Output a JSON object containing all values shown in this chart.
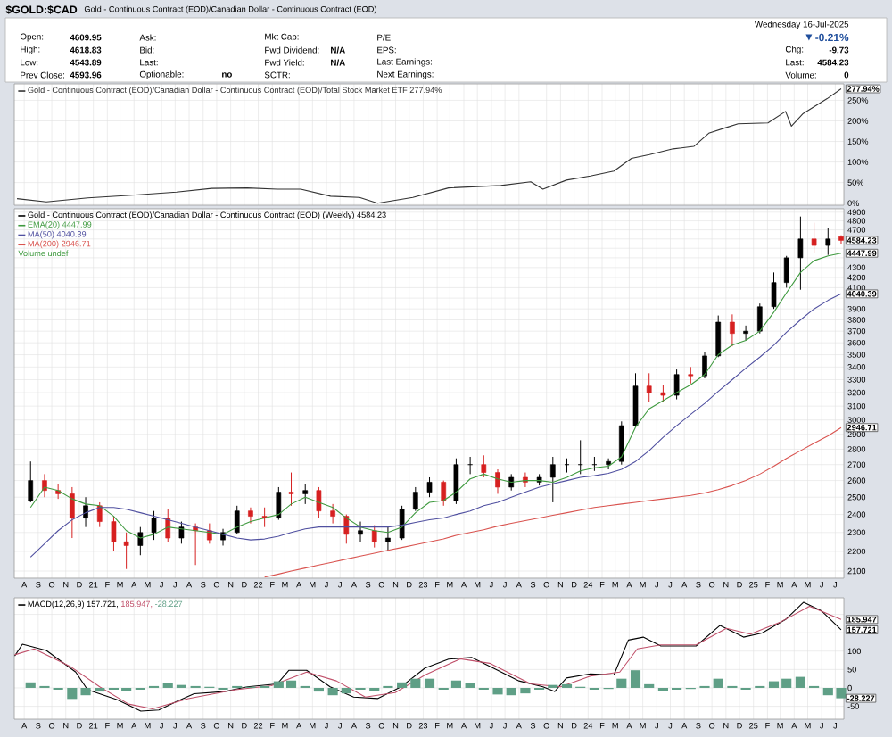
{
  "chart_data": [
    {
      "type": "line",
      "title": "$GOLD:$CAD",
      "subtitle": "Gold - Continuous Contract (EOD)/Canadian Dollar - Continuous Contract (EOD)",
      "annotations": [
        "Open:",
        "4609.95",
        "High:",
        "4618.83",
        "Low:",
        "4543.89",
        "Prev Close:",
        "4593.96",
        "Ask:",
        "Bid:",
        "Last:",
        "Optionable:",
        "no",
        "Mkt Cap:",
        "Fwd Dividend:",
        "N/A",
        "Fwd Yield:",
        "N/A",
        "SCTR:",
        "P/E:",
        "EPS:",
        "Last Earnings:",
        "Next Earnings:",
        "Wednesday 16-Jul-2025",
        "-0.21%",
        "Chg:",
        "-9.73",
        "Last:",
        "4584.23",
        "Volume:",
        "0",
        {
          "text": "277.94%",
          "x": "2025-07-14",
          "y": 277.94
        }
      ],
      "series": [
        {
          "name": "Gold - Continuous Contract (EOD)/Canadian Dollar - Continuous Contract (EOD)/Total Stock Market ETF 277.94%",
          "color": "#333333",
          "x": [
            "2020-07-16",
            "2020-09-19",
            "2020-12-20",
            "2021-04-04",
            "2021-07-04",
            "2021-09-20",
            "2021-12-08",
            "2022-02-12",
            "2022-04-05",
            "2022-06-10",
            "2022-08-13",
            "2022-09-22",
            "2022-12-09",
            "2023-02-26",
            "2023-06-22",
            "2023-08-27",
            "2023-09-23",
            "2023-11-14",
            "2024-01-06",
            "2024-02-27",
            "2024-04-06",
            "2024-05-16",
            "2024-07-07",
            "2024-08-22",
            "2024-09-24",
            "2024-11-02",
            "2024-11-28",
            "2025-02-02",
            "2025-03-13",
            "2025-03-26",
            "2025-04-21",
            "2025-06-13",
            "2025-07-14"
          ],
          "values": [
            11,
            3,
            13,
            20,
            27,
            36,
            37,
            34,
            34,
            17,
            14,
            0,
            14,
            37,
            43,
            52,
            34,
            56,
            66,
            78,
            109,
            118,
            132,
            138,
            170,
            184,
            193,
            195,
            223,
            187,
            218,
            254,
            277.94
          ]
        }
      ],
      "xlim": [
        "2020-07-10",
        "2025-07-20"
      ],
      "xticks": [
        {
          "value": "2020-08",
          "label": null
        },
        {
          "value": "2020-09",
          "label": null
        },
        {
          "value": "2020-10",
          "label": null
        },
        {
          "value": "2020-11",
          "label": null
        },
        {
          "value": "2020-12",
          "label": null
        },
        {
          "value": "2021-01",
          "label": null
        },
        {
          "value": "2021-02",
          "label": null
        },
        {
          "value": "2021-03",
          "label": null
        },
        {
          "value": "2021-04",
          "label": null
        },
        {
          "value": "2021-05",
          "label": null
        },
        {
          "value": "2021-06",
          "label": null
        },
        {
          "value": "2021-07",
          "label": null
        },
        {
          "value": "2021-08",
          "label": null
        },
        {
          "value": "2021-09",
          "label": null
        },
        {
          "value": "2021-10",
          "label": null
        },
        {
          "value": "2021-11",
          "label": null
        },
        {
          "value": "2021-12",
          "label": null
        },
        {
          "value": "2022-01",
          "label": null
        },
        {
          "value": "2022-02",
          "label": null
        },
        {
          "value": "2022-03",
          "label": null
        },
        {
          "value": "2022-04",
          "label": null
        },
        {
          "value": "2022-05",
          "label": null
        },
        {
          "value": "2022-06",
          "label": null
        },
        {
          "value": "2022-07",
          "label": null
        },
        {
          "value": "2022-08",
          "label": null
        },
        {
          "value": "2022-09",
          "label": null
        },
        {
          "value": "2022-10",
          "label": null
        },
        {
          "value": "2022-11",
          "label": null
        },
        {
          "value": "2022-12",
          "label": null
        },
        {
          "value": "2023-01",
          "label": null
        },
        {
          "value": "2023-02",
          "label": null
        },
        {
          "value": "2023-03",
          "label": null
        },
        {
          "value": "2023-04",
          "label": null
        },
        {
          "value": "2023-05",
          "label": null
        },
        {
          "value": "2023-06",
          "label": null
        },
        {
          "value": "2023-07",
          "label": null
        },
        {
          "value": "2023-08",
          "label": null
        },
        {
          "value": "2023-09",
          "label": null
        },
        {
          "value": "2023-10",
          "label": null
        },
        {
          "value": "2023-11",
          "label": null
        },
        {
          "value": "2023-12",
          "label": null
        },
        {
          "value": "2024-01",
          "label": null
        },
        {
          "value": "2024-02",
          "label": null
        },
        {
          "value": "2024-03",
          "label": null
        },
        {
          "value": "2024-04",
          "label": null
        },
        {
          "value": "2024-05",
          "label": null
        },
        {
          "value": "2024-06",
          "label": null
        },
        {
          "value": "2024-07",
          "label": null
        },
        {
          "value": "2024-08",
          "label": null
        },
        {
          "value": "2024-09",
          "label": null
        },
        {
          "value": "2024-10",
          "label": null
        },
        {
          "value": "2024-11",
          "label": null
        },
        {
          "value": "2024-12",
          "label": null
        },
        {
          "value": "2025-01",
          "label": null
        },
        {
          "value": "2025-02",
          "label": null
        },
        {
          "value": "2025-03",
          "label": null
        },
        {
          "value": "2025-04",
          "label": null
        },
        {
          "value": "2025-05",
          "label": null
        },
        {
          "value": "2025-06",
          "label": null
        },
        {
          "value": "2025-07",
          "label": null
        }
      ],
      "ylim": [
        -5,
        290
      ],
      "yticks": [
        {
          "value": 0,
          "label": "0%"
        },
        {
          "value": 50,
          "label": "50%"
        },
        {
          "value": 100,
          "label": "100%"
        },
        {
          "value": 150,
          "label": "150%"
        },
        {
          "value": 200,
          "label": "200%"
        },
        {
          "value": 250,
          "label": "250%"
        }
      ],
      "grid": true,
      "tick_labels": "y",
      "legend": "top left"
    },
    {
      "type": "candlestick",
      "legend_title": "Gold - Continuous Contract (EOD)/Canadian Dollar - Continuous Contract (EOD) (Weekly) 4584.23",
      "x": [
        "2020-08-15",
        "2020-09-15",
        "2020-10-15",
        "2020-11-15",
        "2020-12-15",
        "2021-01-15",
        "2021-02-15",
        "2021-03-15",
        "2021-04-15",
        "2021-05-15",
        "2021-06-15",
        "2021-07-15",
        "2021-08-15",
        "2021-09-15",
        "2021-10-15",
        "2021-11-15",
        "2021-12-15",
        "2022-01-15",
        "2022-02-15",
        "2022-03-15",
        "2022-04-15",
        "2022-05-15",
        "2022-06-15",
        "2022-07-15",
        "2022-08-15",
        "2022-09-15",
        "2022-10-15",
        "2022-11-15",
        "2022-12-15",
        "2023-01-15",
        "2023-02-15",
        "2023-03-15",
        "2023-04-15",
        "2023-05-15",
        "2023-06-15",
        "2023-07-15",
        "2023-08-15",
        "2023-09-15",
        "2023-10-15",
        "2023-11-15",
        "2023-12-15",
        "2024-01-15",
        "2024-02-15",
        "2024-03-15",
        "2024-04-15",
        "2024-05-15",
        "2024-06-15",
        "2024-07-15",
        "2024-08-15",
        "2024-09-15",
        "2024-10-15",
        "2024-11-15",
        "2024-12-15",
        "2025-01-15",
        "2025-02-15",
        "2025-03-15",
        "2025-04-15",
        "2025-05-15",
        "2025-06-15",
        "2025-07-14"
      ],
      "ohlc": [
        [
          2480,
          2720,
          2470,
          2600
        ],
        [
          2600,
          2640,
          2500,
          2540
        ],
        [
          2540,
          2580,
          2490,
          2520
        ],
        [
          2520,
          2560,
          2270,
          2380
        ],
        [
          2380,
          2500,
          2330,
          2450
        ],
        [
          2450,
          2470,
          2330,
          2360
        ],
        [
          2360,
          2390,
          2200,
          2250
        ],
        [
          2250,
          2300,
          2110,
          2230
        ],
        [
          2230,
          2330,
          2180,
          2300
        ],
        [
          2300,
          2420,
          2260,
          2380
        ],
        [
          2380,
          2430,
          2250,
          2270
        ],
        [
          2270,
          2360,
          2240,
          2330
        ],
        [
          2330,
          2350,
          2130,
          2310
        ],
        [
          2310,
          2350,
          2240,
          2260
        ],
        [
          2260,
          2320,
          2230,
          2300
        ],
        [
          2300,
          2450,
          2290,
          2420
        ],
        [
          2420,
          2440,
          2350,
          2390
        ],
        [
          2390,
          2440,
          2330,
          2380
        ],
        [
          2380,
          2560,
          2370,
          2530
        ],
        [
          2530,
          2650,
          2450,
          2520
        ],
        [
          2520,
          2580,
          2460,
          2540
        ],
        [
          2540,
          2560,
          2380,
          2420
        ],
        [
          2420,
          2460,
          2350,
          2390
        ],
        [
          2390,
          2400,
          2240,
          2290
        ],
        [
          2290,
          2360,
          2250,
          2310
        ],
        [
          2310,
          2340,
          2220,
          2250
        ],
        [
          2250,
          2330,
          2200,
          2270
        ],
        [
          2270,
          2450,
          2260,
          2430
        ],
        [
          2430,
          2560,
          2420,
          2530
        ],
        [
          2530,
          2620,
          2500,
          2590
        ],
        [
          2590,
          2600,
          2450,
          2480
        ],
        [
          2480,
          2740,
          2460,
          2700
        ],
        [
          2700,
          2750,
          2640,
          2700
        ],
        [
          2700,
          2760,
          2620,
          2650
        ],
        [
          2650,
          2670,
          2520,
          2560
        ],
        [
          2560,
          2640,
          2540,
          2620
        ],
        [
          2620,
          2650,
          2560,
          2590
        ],
        [
          2590,
          2640,
          2570,
          2620
        ],
        [
          2620,
          2750,
          2470,
          2700
        ],
        [
          2700,
          2740,
          2650,
          2700
        ],
        [
          2700,
          2860,
          2640,
          2700
        ],
        [
          2700,
          2750,
          2660,
          2700
        ],
        [
          2700,
          2740,
          2670,
          2720
        ],
        [
          2720,
          2990,
          2700,
          2960
        ],
        [
          2960,
          3350,
          2950,
          3250
        ],
        [
          3250,
          3350,
          3130,
          3200
        ],
        [
          3200,
          3260,
          3130,
          3180
        ],
        [
          3180,
          3380,
          3150,
          3340
        ],
        [
          3340,
          3400,
          3270,
          3330
        ],
        [
          3330,
          3520,
          3310,
          3490
        ],
        [
          3490,
          3840,
          3480,
          3780
        ],
        [
          3780,
          3850,
          3570,
          3680
        ],
        [
          3680,
          3750,
          3620,
          3700
        ],
        [
          3700,
          3950,
          3680,
          3920
        ],
        [
          3920,
          4250,
          3900,
          4150
        ],
        [
          4150,
          4420,
          4100,
          4400
        ],
        [
          4400,
          4850,
          4080,
          4600
        ],
        [
          4600,
          4780,
          4450,
          4530
        ],
        [
          4530,
          4720,
          4430,
          4600
        ],
        [
          4625,
          4640,
          4540,
          4584.23
        ]
      ],
      "series": [
        {
          "name": "EMA(20) 4447.99",
          "type": "line",
          "color": "#3f9a3f",
          "values": [
            2440,
            2560,
            2540,
            2490,
            2460,
            2450,
            2390,
            2310,
            2270,
            2290,
            2330,
            2320,
            2310,
            2300,
            2290,
            2330,
            2360,
            2380,
            2400,
            2460,
            2500,
            2470,
            2440,
            2380,
            2330,
            2310,
            2300,
            2330,
            2410,
            2470,
            2480,
            2530,
            2610,
            2640,
            2610,
            2590,
            2600,
            2600,
            2590,
            2620,
            2660,
            2680,
            2690,
            2750,
            2950,
            3080,
            3140,
            3200,
            3260,
            3340,
            3500,
            3580,
            3620,
            3700,
            3870,
            4050,
            4250,
            4370,
            4420,
            4447.99
          ]
        },
        {
          "name": "MA(50) 4040.39",
          "type": "line",
          "color": "#5050a0",
          "values": [
            2170,
            2240,
            2310,
            2370,
            2410,
            2440,
            2440,
            2430,
            2410,
            2390,
            2370,
            2350,
            2330,
            2310,
            2290,
            2270,
            2260,
            2265,
            2280,
            2300,
            2320,
            2330,
            2330,
            2330,
            2330,
            2330,
            2330,
            2340,
            2355,
            2370,
            2380,
            2400,
            2420,
            2450,
            2470,
            2500,
            2530,
            2560,
            2580,
            2600,
            2620,
            2630,
            2645,
            2670,
            2720,
            2790,
            2880,
            2960,
            3040,
            3120,
            3210,
            3300,
            3390,
            3480,
            3580,
            3690,
            3800,
            3900,
            3980,
            4040.39
          ]
        },
        {
          "name": "MA(200) 2946.71",
          "type": "line",
          "color": "#d9534f",
          "x": [
            "2022-01-15",
            "2022-02-15",
            "2022-03-15",
            "2022-04-15",
            "2022-05-15",
            "2022-06-15",
            "2022-07-15",
            "2022-08-15",
            "2022-09-15",
            "2022-10-15",
            "2022-11-15",
            "2022-12-15",
            "2023-01-15",
            "2023-02-15",
            "2023-03-15",
            "2023-04-15",
            "2023-05-15",
            "2023-06-15",
            "2023-07-15",
            "2023-08-15",
            "2023-09-15",
            "2023-10-15",
            "2023-11-15",
            "2023-12-15",
            "2024-01-15",
            "2024-02-15",
            "2024-03-15",
            "2024-04-15",
            "2024-05-15",
            "2024-06-15",
            "2024-07-15",
            "2024-08-15",
            "2024-09-15",
            "2024-10-15",
            "2024-11-15",
            "2024-12-15",
            "2025-01-15",
            "2025-02-15",
            "2025-03-15",
            "2025-04-15",
            "2025-05-15",
            "2025-06-15",
            "2025-07-14"
          ],
          "values": [
            2070,
            2085,
            2100,
            2115,
            2130,
            2145,
            2160,
            2175,
            2190,
            2205,
            2220,
            2235,
            2250,
            2265,
            2285,
            2300,
            2315,
            2335,
            2350,
            2365,
            2380,
            2395,
            2410,
            2425,
            2440,
            2450,
            2460,
            2470,
            2480,
            2490,
            2500,
            2510,
            2525,
            2545,
            2570,
            2600,
            2640,
            2690,
            2740,
            2790,
            2840,
            2890,
            2946.71
          ]
        }
      ],
      "annotations": [
        "Volume undef",
        {
          "text": "4584.23",
          "x": "2025-07-14",
          "y": 4584.23
        },
        {
          "text": "4447.99",
          "x": "2025-07-14",
          "y": 4447.99
        },
        {
          "text": "4040.39",
          "x": "2025-07-14",
          "y": 4040.39
        },
        {
          "text": "2946.71",
          "x": "2025-07-14",
          "y": 2946.71
        }
      ],
      "xlim": [
        "2020-07-10",
        "2025-07-20"
      ],
      "xticks": [
        {
          "value": "2020-08",
          "label": "A"
        },
        {
          "value": "2020-09",
          "label": "S"
        },
        {
          "value": "2020-10",
          "label": "O"
        },
        {
          "value": "2020-11",
          "label": "N"
        },
        {
          "value": "2020-12",
          "label": "D"
        },
        {
          "value": "2021-01",
          "label": "21"
        },
        {
          "value": "2021-02",
          "label": "F"
        },
        {
          "value": "2021-03",
          "label": "M"
        },
        {
          "value": "2021-04",
          "label": "A"
        },
        {
          "value": "2021-05",
          "label": "M"
        },
        {
          "value": "2021-06",
          "label": "J"
        },
        {
          "value": "2021-07",
          "label": "J"
        },
        {
          "value": "2021-08",
          "label": "A"
        },
        {
          "value": "2021-09",
          "label": "S"
        },
        {
          "value": "2021-10",
          "label": "O"
        },
        {
          "value": "2021-11",
          "label": "N"
        },
        {
          "value": "2021-12",
          "label": "D"
        },
        {
          "value": "2022-01",
          "label": "22"
        },
        {
          "value": "2022-02",
          "label": "F"
        },
        {
          "value": "2022-03",
          "label": "M"
        },
        {
          "value": "2022-04",
          "label": "A"
        },
        {
          "value": "2022-05",
          "label": "M"
        },
        {
          "value": "2022-06",
          "label": "J"
        },
        {
          "value": "2022-07",
          "label": "J"
        },
        {
          "value": "2022-08",
          "label": "A"
        },
        {
          "value": "2022-09",
          "label": "S"
        },
        {
          "value": "2022-10",
          "label": "O"
        },
        {
          "value": "2022-11",
          "label": "N"
        },
        {
          "value": "2022-12",
          "label": "D"
        },
        {
          "value": "2023-01",
          "label": "23"
        },
        {
          "value": "2023-02",
          "label": "F"
        },
        {
          "value": "2023-03",
          "label": "M"
        },
        {
          "value": "2023-04",
          "label": "A"
        },
        {
          "value": "2023-05",
          "label": "M"
        },
        {
          "value": "2023-06",
          "label": "J"
        },
        {
          "value": "2023-07",
          "label": "J"
        },
        {
          "value": "2023-08",
          "label": "A"
        },
        {
          "value": "2023-09",
          "label": "S"
        },
        {
          "value": "2023-10",
          "label": "O"
        },
        {
          "value": "2023-11",
          "label": "N"
        },
        {
          "value": "2023-12",
          "label": "D"
        },
        {
          "value": "2024-01",
          "label": "24"
        },
        {
          "value": "2024-02",
          "label": "F"
        },
        {
          "value": "2024-03",
          "label": "M"
        },
        {
          "value": "2024-04",
          "label": "A"
        },
        {
          "value": "2024-05",
          "label": "M"
        },
        {
          "value": "2024-06",
          "label": "J"
        },
        {
          "value": "2024-07",
          "label": "J"
        },
        {
          "value": "2024-08",
          "label": "A"
        },
        {
          "value": "2024-09",
          "label": "S"
        },
        {
          "value": "2024-10",
          "label": "O"
        },
        {
          "value": "2024-11",
          "label": "N"
        },
        {
          "value": "2024-12",
          "label": "D"
        },
        {
          "value": "2025-01",
          "label": "25"
        },
        {
          "value": "2025-02",
          "label": "F"
        },
        {
          "value": "2025-03",
          "label": "M"
        },
        {
          "value": "2025-04",
          "label": "A"
        },
        {
          "value": "2025-05",
          "label": "M"
        },
        {
          "value": "2025-06",
          "label": "J"
        },
        {
          "value": "2025-07",
          "label": "J"
        }
      ],
      "ylim": [
        2065,
        4940
      ],
      "yticks": [
        2100,
        2200,
        2300,
        2400,
        2500,
        2600,
        2700,
        2800,
        2900,
        3000,
        3100,
        3200,
        3300,
        3400,
        3500,
        3600,
        3700,
        3800,
        3900,
        {
          "value": 4000,
          "label": null
        },
        4100,
        4200,
        4300,
        {
          "value": 4400,
          "label": null
        },
        {
          "value": 4500,
          "label": null
        },
        {
          "value": 4600,
          "label": null
        },
        4700,
        4800,
        4900
      ],
      "log": true,
      "grid": true,
      "legend": "top left"
    },
    {
      "type": "line",
      "x": [
        "2020-08-15",
        "2020-09-15",
        "2020-10-15",
        "2020-11-15",
        "2020-12-15",
        "2021-01-15",
        "2021-02-15",
        "2021-03-15",
        "2021-04-15",
        "2021-05-15",
        "2021-06-15",
        "2021-07-15",
        "2021-08-15",
        "2021-09-15",
        "2021-10-15",
        "2021-11-15",
        "2021-12-15",
        "2022-01-15",
        "2022-02-15",
        "2022-03-15",
        "2022-04-15",
        "2022-05-15",
        "2022-06-15",
        "2022-07-15",
        "2022-08-15",
        "2022-09-15",
        "2022-10-15",
        "2022-11-15",
        "2022-12-15",
        "2023-01-15",
        "2023-02-15",
        "2023-03-15",
        "2023-04-15",
        "2023-05-15",
        "2023-06-15",
        "2023-07-15",
        "2023-08-15",
        "2023-09-15",
        "2023-10-15",
        "2023-11-15",
        "2023-12-15",
        "2024-01-15",
        "2024-02-15",
        "2024-03-15",
        "2024-04-15",
        "2024-05-15",
        "2024-06-15",
        "2024-07-15",
        "2024-08-15",
        "2024-09-15",
        "2024-10-15",
        "2024-11-15",
        "2024-12-15",
        "2025-01-15",
        "2025-02-15",
        "2025-03-15",
        "2025-04-15",
        "2025-05-15",
        "2025-06-15",
        "2025-07-14"
      ],
      "series": [
        {
          "name": "MACD(12,26,9) 157.721,",
          "type": "line",
          "color": "#000000",
          "x": [
            "2020-07-11",
            "2020-07-28",
            "2020-09-19",
            "2020-11-23",
            "2020-12-19",
            "2021-02-23",
            "2021-04-16",
            "2021-05-26",
            "2021-07-04",
            "2021-08-12",
            "2021-10-17",
            "2021-12-08",
            "2022-02-12",
            "2022-03-10",
            "2022-04-18",
            "2022-06-09",
            "2022-07-31",
            "2022-09-22",
            "2022-11-13",
            "2023-01-05",
            "2023-02-26",
            "2023-04-18",
            "2023-06-10",
            "2023-08-01",
            "2023-09-23",
            "2023-10-19",
            "2023-11-14",
            "2024-01-06",
            "2024-02-27",
            "2024-03-30",
            "2024-05-02",
            "2024-06-10",
            "2024-08-27",
            "2024-10-19",
            "2024-12-10",
            "2025-01-20",
            "2025-03-13",
            "2025-04-22",
            "2025-05-31",
            "2025-07-14"
          ],
          "values": [
            87,
            119,
            102,
            43,
            -5,
            -32,
            -63,
            -60,
            -37,
            -16,
            -10,
            3,
            11,
            48,
            48,
            3,
            -25,
            -29,
            3,
            54,
            78,
            83,
            51,
            19,
            3,
            -10,
            27,
            38,
            35,
            130,
            138,
            114,
            114,
            170,
            138,
            149,
            186,
            233,
            210,
            157.721
          ]
        },
        {
          "name": "185.947,",
          "type": "line",
          "color": "#c0506a",
          "x": [
            "2020-07-11",
            "2020-08-23",
            "2020-11-10",
            "2021-01-15",
            "2021-03-20",
            "2021-05-12",
            "2021-07-30",
            "2021-11-12",
            "2022-01-30",
            "2022-04-18",
            "2022-06-23",
            "2022-08-26",
            "2022-10-31",
            "2023-01-05",
            "2023-03-24",
            "2023-05-28",
            "2023-08-27",
            "2023-11-01",
            "2024-01-06",
            "2024-03-11",
            "2024-04-19",
            "2024-06-10",
            "2024-08-27",
            "2024-11-02",
            "2024-12-25",
            "2025-02-28",
            "2025-05-05",
            "2025-07-14"
          ],
          "values": [
            90,
            106,
            59,
            3,
            -44,
            -57,
            -29,
            -5,
            6,
            43,
            19,
            -25,
            -13,
            35,
            79,
            67,
            11,
            3,
            32,
            43,
            106,
            117,
            117,
            162,
            146,
            178,
            222,
            185.947
          ]
        },
        {
          "name": "-28.227",
          "type": "bar",
          "color": "#5f9f86",
          "values": [
            15,
            5,
            -5,
            -30,
            -20,
            -10,
            -5,
            -8,
            -5,
            5,
            12,
            8,
            5,
            3,
            -5,
            5,
            3,
            5,
            18,
            20,
            5,
            -10,
            -20,
            -15,
            -5,
            -8,
            5,
            15,
            25,
            25,
            -5,
            20,
            12,
            -5,
            -18,
            -20,
            -15,
            -5,
            8,
            10,
            3,
            -5,
            -3,
            25,
            48,
            10,
            -8,
            -5,
            -3,
            5,
            25,
            5,
            -5,
            5,
            18,
            25,
            30,
            5,
            -20,
            -28.227
          ]
        }
      ],
      "annotations": [
        {
          "text": "185.947",
          "x": "2025-07-14",
          "y": 185.947
        },
        {
          "text": "157.721",
          "x": "2025-07-14",
          "y": 157.721
        },
        {
          "text": "-28.227",
          "x": "2025-07-14",
          "y": -28.227
        }
      ],
      "xlim": [
        "2020-07-10",
        "2025-07-20"
      ],
      "xticks": [
        {
          "value": "2020-08",
          "label": "A"
        },
        {
          "value": "2020-09",
          "label": "S"
        },
        {
          "value": "2020-10",
          "label": "O"
        },
        {
          "value": "2020-11",
          "label": "N"
        },
        {
          "value": "2020-12",
          "label": "D"
        },
        {
          "value": "2021-01",
          "label": "21"
        },
        {
          "value": "2021-02",
          "label": "F"
        },
        {
          "value": "2021-03",
          "label": "M"
        },
        {
          "value": "2021-04",
          "label": "A"
        },
        {
          "value": "2021-05",
          "label": "M"
        },
        {
          "value": "2021-06",
          "label": "J"
        },
        {
          "value": "2021-07",
          "label": "J"
        },
        {
          "value": "2021-08",
          "label": "A"
        },
        {
          "value": "2021-09",
          "label": "S"
        },
        {
          "value": "2021-10",
          "label": "O"
        },
        {
          "value": "2021-11",
          "label": "N"
        },
        {
          "value": "2021-12",
          "label": "D"
        },
        {
          "value": "2022-01",
          "label": "22"
        },
        {
          "value": "2022-02",
          "label": "F"
        },
        {
          "value": "2022-03",
          "label": "M"
        },
        {
          "value": "2022-04",
          "label": "A"
        },
        {
          "value": "2022-05",
          "label": "M"
        },
        {
          "value": "2022-06",
          "label": "J"
        },
        {
          "value": "2022-07",
          "label": "J"
        },
        {
          "value": "2022-08",
          "label": "A"
        },
        {
          "value": "2022-09",
          "label": "S"
        },
        {
          "value": "2022-10",
          "label": "O"
        },
        {
          "value": "2022-11",
          "label": "N"
        },
        {
          "value": "2022-12",
          "label": "D"
        },
        {
          "value": "2023-01",
          "label": "23"
        },
        {
          "value": "2023-02",
          "label": "F"
        },
        {
          "value": "2023-03",
          "label": "M"
        },
        {
          "value": "2023-04",
          "label": "A"
        },
        {
          "value": "2023-05",
          "label": "M"
        },
        {
          "value": "2023-06",
          "label": "J"
        },
        {
          "value": "2023-07",
          "label": "J"
        },
        {
          "value": "2023-08",
          "label": "A"
        },
        {
          "value": "2023-09",
          "label": "S"
        },
        {
          "value": "2023-10",
          "label": "O"
        },
        {
          "value": "2023-11",
          "label": "N"
        },
        {
          "value": "2023-12",
          "label": "D"
        },
        {
          "value": "2024-01",
          "label": "24"
        },
        {
          "value": "2024-02",
          "label": "F"
        },
        {
          "value": "2024-03",
          "label": "M"
        },
        {
          "value": "2024-04",
          "label": "A"
        },
        {
          "value": "2024-05",
          "label": "M"
        },
        {
          "value": "2024-06",
          "label": "J"
        },
        {
          "value": "2024-07",
          "label": "J"
        },
        {
          "value": "2024-08",
          "label": "A"
        },
        {
          "value": "2024-09",
          "label": "S"
        },
        {
          "value": "2024-10",
          "label": "O"
        },
        {
          "value": "2024-11",
          "label": "N"
        },
        {
          "value": "2024-12",
          "label": "D"
        },
        {
          "value": "2025-01",
          "label": "25"
        },
        {
          "value": "2025-02",
          "label": "F"
        },
        {
          "value": "2025-03",
          "label": "M"
        },
        {
          "value": "2025-04",
          "label": "A"
        },
        {
          "value": "2025-05",
          "label": "M"
        },
        {
          "value": "2025-06",
          "label": "J"
        },
        {
          "value": "2025-07",
          "label": "J"
        }
      ],
      "ylim": [
        -85,
        245
      ],
      "yticks": [
        -50,
        0,
        50,
        100,
        {
          "value": 150,
          "label": null
        },
        {
          "value": 200,
          "label": null
        }
      ],
      "grid": true,
      "legend": "top left"
    }
  ]
}
